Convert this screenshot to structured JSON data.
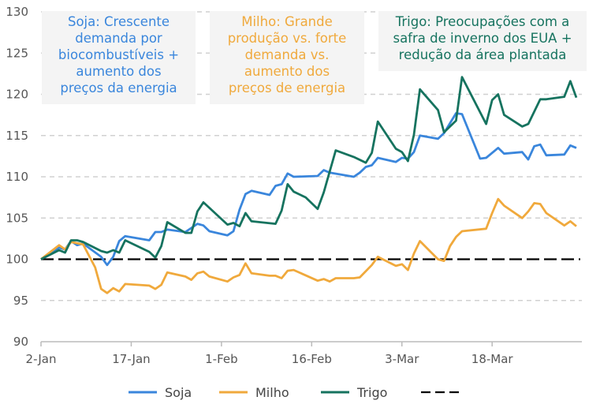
{
  "chart_data": {
    "type": "line",
    "x_format": "MM-DD",
    "xlim": [
      "01-02",
      "04-01"
    ],
    "ylim": [
      90,
      130
    ],
    "y_ticks": [
      "90",
      "95",
      "100",
      "105",
      "110",
      "115",
      "120",
      "125",
      "130"
    ],
    "x_ticks": [
      {
        "date": "01-02",
        "label": "2-Jan"
      },
      {
        "date": "01-17",
        "label": "17-Jan"
      },
      {
        "date": "02-01",
        "label": "1-Feb"
      },
      {
        "date": "02-16",
        "label": "16-Feb"
      },
      {
        "date": "03-03",
        "label": "3-Mar"
      },
      {
        "date": "03-18",
        "label": "18-Mar"
      }
    ],
    "grid": true,
    "legend_position": "bottom",
    "reference_line": {
      "value": 100,
      "color": "#000000"
    },
    "series": [
      {
        "name": "Soja",
        "color": "#3a86dc",
        "points": [
          [
            "01-02",
            100
          ],
          [
            "01-05",
            101.4
          ],
          [
            "01-06",
            101.2
          ],
          [
            "01-07",
            102.2
          ],
          [
            "01-08",
            101.7
          ],
          [
            "01-09",
            101.9
          ],
          [
            "01-12",
            100.3
          ],
          [
            "01-13",
            99.3
          ],
          [
            "01-14",
            100.3
          ],
          [
            "01-15",
            102.2
          ],
          [
            "01-16",
            102.8
          ],
          [
            "01-20",
            102.3
          ],
          [
            "01-21",
            103.3
          ],
          [
            "01-22",
            103.3
          ],
          [
            "01-23",
            103.6
          ],
          [
            "01-26",
            103.3
          ],
          [
            "01-28",
            104.3
          ],
          [
            "01-29",
            104.1
          ],
          [
            "01-30",
            103.4
          ],
          [
            "02-02",
            102.9
          ],
          [
            "02-03",
            103.4
          ],
          [
            "02-04",
            106.0
          ],
          [
            "02-05",
            107.9
          ],
          [
            "02-06",
            108.3
          ],
          [
            "02-09",
            107.8
          ],
          [
            "02-10",
            108.9
          ],
          [
            "02-11",
            109.1
          ],
          [
            "02-12",
            110.4
          ],
          [
            "02-13",
            110.0
          ],
          [
            "02-17",
            110.1
          ],
          [
            "02-18",
            110.8
          ],
          [
            "02-19",
            110.5
          ],
          [
            "02-23",
            110.0
          ],
          [
            "02-24",
            110.5
          ],
          [
            "02-25",
            111.2
          ],
          [
            "02-26",
            111.4
          ],
          [
            "02-27",
            112.3
          ],
          [
            "03-02",
            111.8
          ],
          [
            "03-03",
            112.3
          ],
          [
            "03-04",
            112.2
          ],
          [
            "03-05",
            113.0
          ],
          [
            "03-06",
            115.0
          ],
          [
            "03-09",
            114.6
          ],
          [
            "03-10",
            115.3
          ],
          [
            "03-12",
            117.7
          ],
          [
            "03-13",
            117.6
          ],
          [
            "03-16",
            112.2
          ],
          [
            "03-17",
            112.3
          ],
          [
            "03-19",
            113.5
          ],
          [
            "03-20",
            112.8
          ],
          [
            "03-23",
            113.0
          ],
          [
            "03-24",
            112.1
          ],
          [
            "03-25",
            113.7
          ],
          [
            "03-26",
            113.9
          ],
          [
            "03-27",
            112.6
          ],
          [
            "03-30",
            112.7
          ],
          [
            "03-31",
            113.8
          ],
          [
            "04-01",
            113.5
          ]
        ]
      },
      {
        "name": "Milho",
        "color": "#f0a93c",
        "points": [
          [
            "01-02",
            100
          ],
          [
            "01-05",
            101.7
          ],
          [
            "01-06",
            101.2
          ],
          [
            "01-07",
            102.1
          ],
          [
            "01-09",
            101.8
          ],
          [
            "01-11",
            99.0
          ],
          [
            "01-12",
            96.4
          ],
          [
            "01-13",
            95.9
          ],
          [
            "01-14",
            96.5
          ],
          [
            "01-15",
            96.1
          ],
          [
            "01-16",
            97.0
          ],
          [
            "01-20",
            96.8
          ],
          [
            "01-21",
            96.4
          ],
          [
            "01-22",
            96.9
          ],
          [
            "01-23",
            98.4
          ],
          [
            "01-26",
            97.9
          ],
          [
            "01-27",
            97.5
          ],
          [
            "01-28",
            98.3
          ],
          [
            "01-29",
            98.5
          ],
          [
            "01-30",
            97.9
          ],
          [
            "02-02",
            97.3
          ],
          [
            "02-03",
            97.8
          ],
          [
            "02-04",
            98.1
          ],
          [
            "02-05",
            99.5
          ],
          [
            "02-06",
            98.3
          ],
          [
            "02-09",
            98.0
          ],
          [
            "02-10",
            98.0
          ],
          [
            "02-11",
            97.7
          ],
          [
            "02-12",
            98.6
          ],
          [
            "02-13",
            98.7
          ],
          [
            "02-17",
            97.4
          ],
          [
            "02-18",
            97.6
          ],
          [
            "02-19",
            97.3
          ],
          [
            "02-20",
            97.7
          ],
          [
            "02-23",
            97.7
          ],
          [
            "02-24",
            97.8
          ],
          [
            "02-26",
            99.3
          ],
          [
            "02-27",
            100.3
          ],
          [
            "03-02",
            99.2
          ],
          [
            "03-03",
            99.4
          ],
          [
            "03-04",
            98.7
          ],
          [
            "03-05",
            100.7
          ],
          [
            "03-06",
            102.2
          ],
          [
            "03-09",
            100.0
          ],
          [
            "03-10",
            99.8
          ],
          [
            "03-11",
            101.6
          ],
          [
            "03-12",
            102.7
          ],
          [
            "03-13",
            103.4
          ],
          [
            "03-17",
            103.7
          ],
          [
            "03-18",
            105.6
          ],
          [
            "03-19",
            107.3
          ],
          [
            "03-20",
            106.5
          ],
          [
            "03-23",
            105.0
          ],
          [
            "03-24",
            105.8
          ],
          [
            "03-25",
            106.8
          ],
          [
            "03-26",
            106.7
          ],
          [
            "03-27",
            105.6
          ],
          [
            "03-30",
            104.1
          ],
          [
            "03-31",
            104.6
          ],
          [
            "04-01",
            104.0
          ]
        ]
      },
      {
        "name": "Trigo",
        "color": "#16735f",
        "points": [
          [
            "01-02",
            100
          ],
          [
            "01-05",
            101.1
          ],
          [
            "01-06",
            100.8
          ],
          [
            "01-07",
            102.3
          ],
          [
            "01-08",
            102.3
          ],
          [
            "01-09",
            102.1
          ],
          [
            "01-12",
            101.0
          ],
          [
            "01-13",
            100.8
          ],
          [
            "01-14",
            101.1
          ],
          [
            "01-15",
            100.8
          ],
          [
            "01-16",
            102.3
          ],
          [
            "01-20",
            100.9
          ],
          [
            "01-21",
            100.2
          ],
          [
            "01-22",
            101.6
          ],
          [
            "01-23",
            104.5
          ],
          [
            "01-26",
            103.2
          ],
          [
            "01-27",
            103.2
          ],
          [
            "01-28",
            105.8
          ],
          [
            "01-29",
            106.9
          ],
          [
            "02-02",
            104.2
          ],
          [
            "02-03",
            104.4
          ],
          [
            "02-04",
            104.0
          ],
          [
            "02-05",
            105.6
          ],
          [
            "02-06",
            104.6
          ],
          [
            "02-10",
            104.3
          ],
          [
            "02-11",
            105.9
          ],
          [
            "02-12",
            109.1
          ],
          [
            "02-13",
            108.2
          ],
          [
            "02-15",
            107.5
          ],
          [
            "02-17",
            106.1
          ],
          [
            "02-18",
            108.1
          ],
          [
            "02-20",
            113.2
          ],
          [
            "02-23",
            112.4
          ],
          [
            "02-25",
            111.7
          ],
          [
            "02-26",
            112.9
          ],
          [
            "02-27",
            116.7
          ],
          [
            "03-02",
            113.4
          ],
          [
            "03-03",
            113.0
          ],
          [
            "03-04",
            111.9
          ],
          [
            "03-05",
            115.1
          ],
          [
            "03-06",
            120.6
          ],
          [
            "03-09",
            118.1
          ],
          [
            "03-10",
            115.4
          ],
          [
            "03-12",
            116.8
          ],
          [
            "03-13",
            122.1
          ],
          [
            "03-17",
            116.4
          ],
          [
            "03-18",
            119.3
          ],
          [
            "03-19",
            120.0
          ],
          [
            "03-20",
            117.5
          ],
          [
            "03-23",
            116.1
          ],
          [
            "03-24",
            116.4
          ],
          [
            "03-26",
            119.4
          ],
          [
            "03-27",
            119.4
          ],
          [
            "03-30",
            119.7
          ],
          [
            "03-31",
            121.6
          ],
          [
            "04-01",
            119.6
          ]
        ]
      }
    ],
    "annotations": [
      {
        "text": "Soja: Crescente demanda por biocombustíveis + aumento dos preços da energia",
        "lines": [
          "Soja: Crescente",
          "demanda por",
          "biocombustíveis +",
          "aumento dos",
          "preços da energia"
        ],
        "color": "#3a86dc"
      },
      {
        "text": "Milho: Grande produção vs. forte demanda vs. aumento dos preços de energia",
        "lines": [
          "Milho: Grande",
          "produção vs. forte",
          "demanda vs.",
          "aumento dos",
          "preços de energia"
        ],
        "color": "#f0a93c"
      },
      {
        "text": "Trigo: Preocupações com a safra de inverno dos EUA + redução da área plantada",
        "lines": [
          "Trigo: Preocupações com a",
          "safra de inverno dos EUA +",
          "redução da área plantada"
        ],
        "color": "#16735f"
      }
    ]
  }
}
